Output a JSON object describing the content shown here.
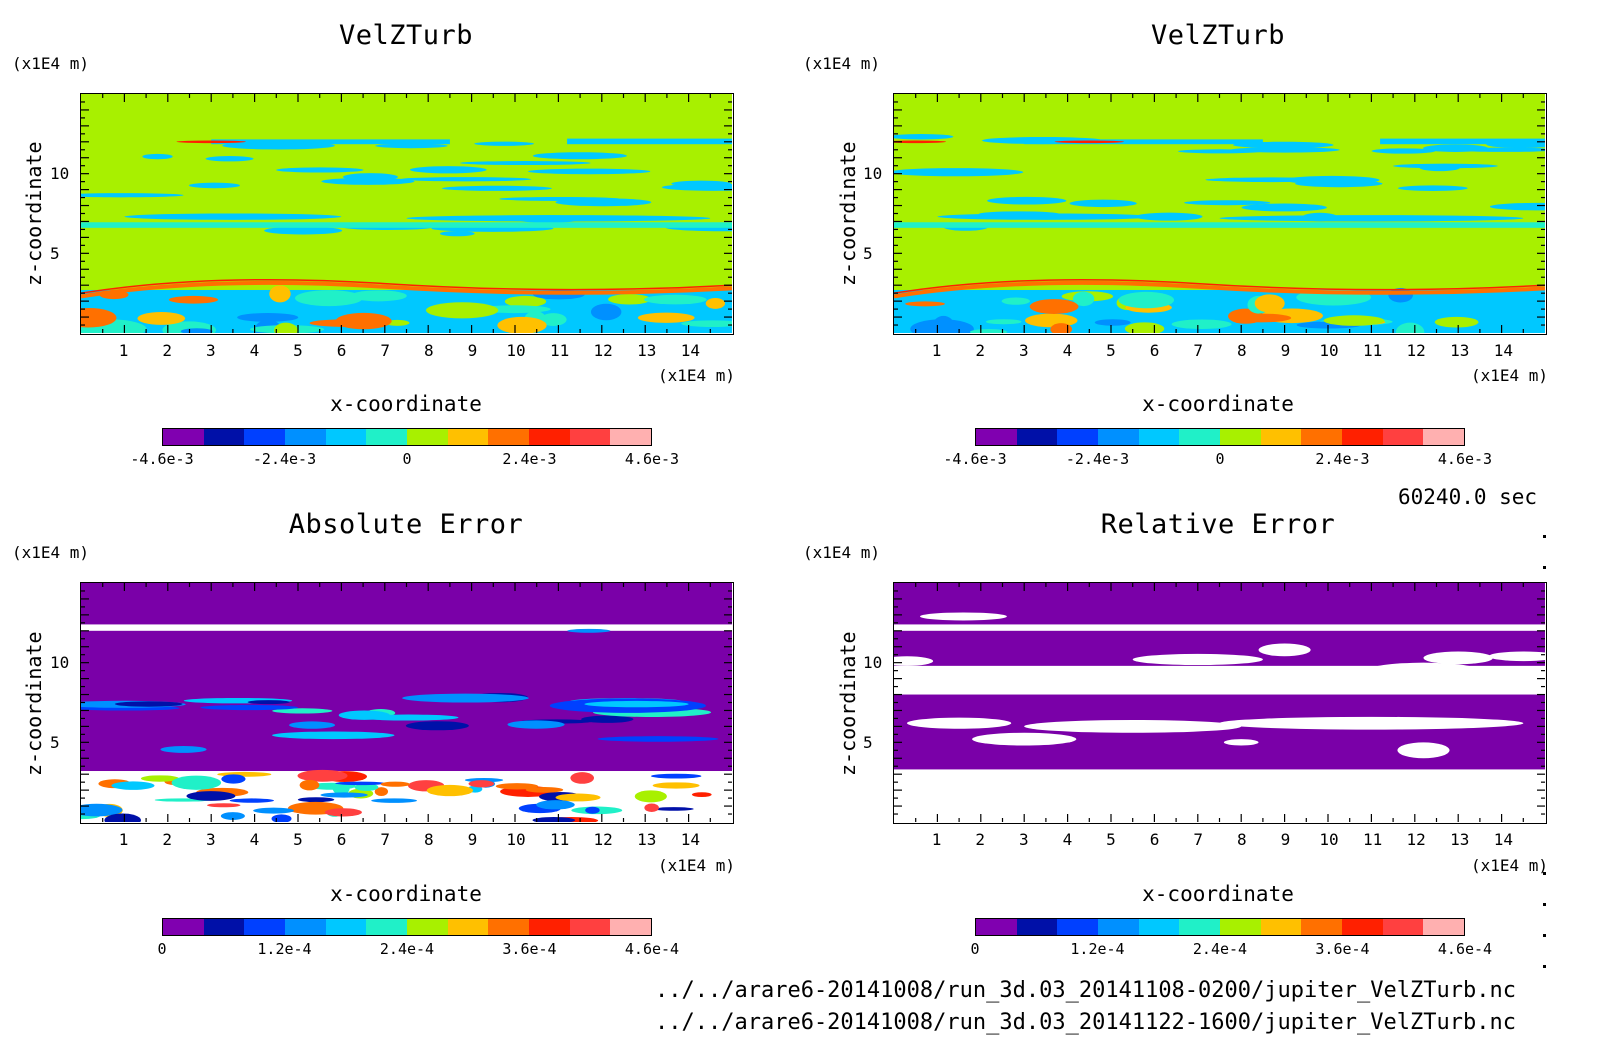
{
  "colors": {
    "palette_velocity": [
      "#8000b0",
      "#0010a8",
      "#0040ff",
      "#0090ff",
      "#00c8ff",
      "#20f0c8",
      "#a8f000",
      "#ffc000",
      "#ff7000",
      "#ff2000",
      "#ff4040",
      "#ffb0b0"
    ],
    "palette_error": [
      "#8000b0",
      "#0010a8",
      "#0040ff",
      "#0090ff",
      "#00c8ff",
      "#20f0c8",
      "#a8f000",
      "#ffc000",
      "#ff7000",
      "#ff2000",
      "#ff4040",
      "#ffb0b0"
    ],
    "velocity_background": "#a8f000",
    "error_background": "#7a00a8",
    "white": "#ffffff"
  },
  "panels": {
    "top_left": {
      "title": "VelZTurb",
      "y_unit": "(x1E4 m)",
      "x_unit": "(x1E4 m)",
      "xlabel": "x-coordinate",
      "ylabel": "z-coordinate",
      "colorbar_labels": [
        "-4.6e-3",
        "-2.4e-3",
        "0",
        "2.4e-3",
        "4.6e-3"
      ]
    },
    "top_right": {
      "title": "VelZTurb",
      "y_unit": "(x1E4 m)",
      "x_unit": "(x1E4 m)",
      "xlabel": "x-coordinate",
      "ylabel": "z-coordinate",
      "colorbar_labels": [
        "-4.6e-3",
        "-2.4e-3",
        "0",
        "2.4e-3",
        "4.6e-3"
      ]
    },
    "bottom_left": {
      "title": "Absolute Error",
      "y_unit": "(x1E4 m)",
      "x_unit": "(x1E4 m)",
      "xlabel": "x-coordinate",
      "ylabel": "z-coordinate",
      "colorbar_labels": [
        "0",
        "1.2e-4",
        "2.4e-4",
        "3.6e-4",
        "4.6e-4"
      ]
    },
    "bottom_right": {
      "title": "Relative Error",
      "y_unit": "(x1E4 m)",
      "x_unit": "(x1E4 m)",
      "xlabel": "x-coordinate",
      "ylabel": "z-coordinate",
      "colorbar_labels": [
        "0",
        "1.2e-4",
        "2.4e-4",
        "3.6e-4",
        "4.6e-4"
      ]
    }
  },
  "info": {
    "time": "60240.0 sec",
    "file1": "../../arare6-20141008/run_3d.03_20141108-0200/jupiter_VelZTurb.nc",
    "file2": "../../arare6-20141008/run_3d.03_20141122-1600/jupiter_VelZTurb.nc"
  },
  "chart_data": [
    {
      "type": "heatmap",
      "title": "VelZTurb",
      "xlabel": "x-coordinate",
      "ylabel": "z-coordinate",
      "x_unit": "(x1E4 m)",
      "y_unit": "(x1E4 m)",
      "xlim": [
        0,
        15
      ],
      "ylim": [
        0,
        15
      ],
      "xticks": [
        "1",
        "2",
        "3",
        "4",
        "5",
        "6",
        "7",
        "8",
        "9",
        "10",
        "11",
        "12",
        "13",
        "14"
      ],
      "yticks": [
        "5",
        "10"
      ],
      "colorbar": {
        "min": -0.0046,
        "max": 0.0046,
        "labels": [
          "-4.6e-3",
          "-2.4e-3",
          "0",
          "2.4e-3",
          "4.6e-3"
        ]
      }
    },
    {
      "type": "heatmap",
      "title": "VelZTurb",
      "xlabel": "x-coordinate",
      "ylabel": "z-coordinate",
      "x_unit": "(x1E4 m)",
      "y_unit": "(x1E4 m)",
      "xlim": [
        0,
        15
      ],
      "ylim": [
        0,
        15
      ],
      "xticks": [
        "1",
        "2",
        "3",
        "4",
        "5",
        "6",
        "7",
        "8",
        "9",
        "10",
        "11",
        "12",
        "13",
        "14"
      ],
      "yticks": [
        "5",
        "10"
      ],
      "colorbar": {
        "min": -0.0046,
        "max": 0.0046,
        "labels": [
          "-4.6e-3",
          "-2.4e-3",
          "0",
          "2.4e-3",
          "4.6e-3"
        ]
      }
    },
    {
      "type": "heatmap",
      "title": "Absolute Error",
      "xlabel": "x-coordinate",
      "ylabel": "z-coordinate",
      "x_unit": "(x1E4 m)",
      "y_unit": "(x1E4 m)",
      "xlim": [
        0,
        15
      ],
      "ylim": [
        0,
        15
      ],
      "xticks": [
        "1",
        "2",
        "3",
        "4",
        "5",
        "6",
        "7",
        "8",
        "9",
        "10",
        "11",
        "12",
        "13",
        "14"
      ],
      "yticks": [
        "5",
        "10"
      ],
      "colorbar": {
        "min": 0,
        "max": 0.00046,
        "labels": [
          "0",
          "1.2e-4",
          "2.4e-4",
          "3.6e-4",
          "4.6e-4"
        ]
      }
    },
    {
      "type": "heatmap",
      "title": "Relative Error",
      "xlabel": "x-coordinate",
      "ylabel": "z-coordinate",
      "x_unit": "(x1E4 m)",
      "y_unit": "(x1E4 m)",
      "xlim": [
        0,
        15
      ],
      "ylim": [
        0,
        15
      ],
      "xticks": [
        "1",
        "2",
        "3",
        "4",
        "5",
        "6",
        "7",
        "8",
        "9",
        "10",
        "11",
        "12",
        "13",
        "14"
      ],
      "yticks": [
        "5",
        "10"
      ],
      "colorbar": {
        "min": 0,
        "max": 0.00046,
        "labels": [
          "0",
          "1.2e-4",
          "2.4e-4",
          "3.6e-4",
          "4.6e-4"
        ]
      }
    }
  ]
}
